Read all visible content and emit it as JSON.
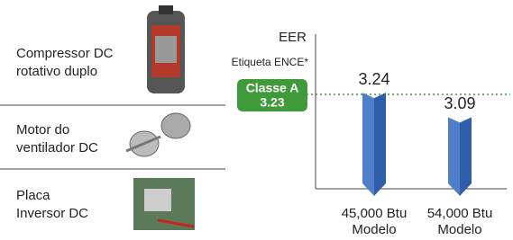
{
  "features": [
    {
      "lines": [
        "Compressor DC",
        "rotativo duplo"
      ]
    },
    {
      "lines": [
        "Motor do",
        "ventilador DC"
      ]
    },
    {
      "lines": [
        "Placa",
        "Inversor DC"
      ]
    }
  ],
  "chart_data": {
    "type": "bar",
    "y_label": "EER",
    "categories": [
      "45,000 Btu",
      "54,000 Btu"
    ],
    "x_sublabel": "Modelo",
    "values": [
      3.24,
      3.09
    ],
    "color": "#4f7fc8",
    "side_color": "#2f5ea8",
    "ylim": [
      2.65,
      3.6
    ],
    "reference": {
      "label": "Etiqueta ENCE*",
      "name": "Classe A",
      "value": 3.23,
      "color": "#3f9a3a"
    }
  }
}
